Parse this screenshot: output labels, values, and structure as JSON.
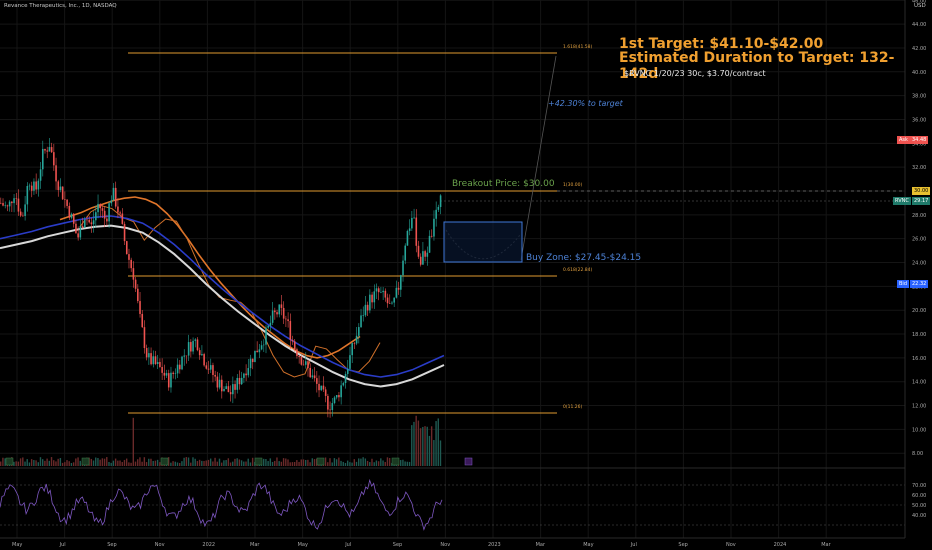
{
  "header": {
    "title": "Revance Therapeutics, Inc., 1D, NASDAQ",
    "currency": "USD"
  },
  "annotations": {
    "target_line1": "1st Target: $41.10-$42.00",
    "target_line2": "Estimated Duration to Target: 132-142d",
    "option_note": "$RVNC 1/20/23 30c, $3.70/contract",
    "pct_to_target": "+42.30% to target",
    "breakout": "Breakout Price: $30.00",
    "buy_zone": "Buy Zone: $27.45-$24.15",
    "fib_1618": "1.618(41.58)",
    "fib_1": "1(30.00)",
    "fib_0618": "0.618(22.84)",
    "fib_0": "0(11.26)"
  },
  "price_labels": {
    "ask": "Ask",
    "ask_value": "34.48",
    "rvnc": "RVNC",
    "rvnc_value": "29.17",
    "breakout_value": "30.00",
    "bid": "Bid",
    "bid_value": "22.32"
  },
  "colors": {
    "up": "#26a69a",
    "down": "#ef5350",
    "fib": "#e09a30",
    "accent": "#4d82d6",
    "rsi": "#7e57c2"
  },
  "chart_data": {
    "type": "line",
    "title": "Revance Therapeutics, Inc., 1D, NASDAQ",
    "ylim": [
      7,
      46
    ],
    "y_ticks": [
      8,
      10,
      12,
      14,
      16,
      18,
      20,
      22,
      24,
      26,
      28,
      30,
      32,
      34,
      36,
      38,
      40,
      42,
      44,
      46
    ],
    "x_ticks": [
      "May",
      "Jul",
      "Sep",
      "Nov",
      "2022",
      "Mar",
      "May",
      "Jul",
      "Sep",
      "Nov",
      "2023",
      "Mar",
      "May",
      "Jul",
      "Sep",
      "Nov",
      "2024",
      "Mar"
    ],
    "series": [
      {
        "values": [
          29,
          28.5,
          30,
          27.5,
          31,
          30,
          33,
          34,
          31,
          29.5,
          28,
          26,
          28,
          27,
          29,
          27.5,
          30,
          28,
          25,
          23,
          19,
          16,
          15.5,
          15,
          14,
          15,
          16,
          17,
          17.5,
          16,
          15,
          14,
          13.5,
          13,
          14,
          15,
          16,
          17,
          18,
          19.5,
          20,
          19,
          17,
          16,
          15,
          14,
          13,
          12,
          12.5,
          14,
          16,
          18,
          20,
          21,
          21.5,
          21,
          20,
          22,
          26,
          28,
          24,
          25,
          27,
          29.5
        ]
      }
    ],
    "ma_slow": [
      27,
      27.3,
      27.6,
      28,
      28.3,
      28.6,
      28.8,
      28.9,
      28.7,
      28.3,
      27.5,
      26.5,
      25.3,
      24,
      22.8,
      21.7,
      20.7,
      19.7,
      18.8,
      18,
      17.3,
      16.6,
      16,
      15.6,
      15.4,
      15.6,
      16,
      16.6,
      17.2
    ],
    "rsi_levels": [
      70,
      60,
      50,
      40
    ],
    "fib_levels": [
      41.58,
      30.0,
      22.84,
      11.26
    ]
  }
}
